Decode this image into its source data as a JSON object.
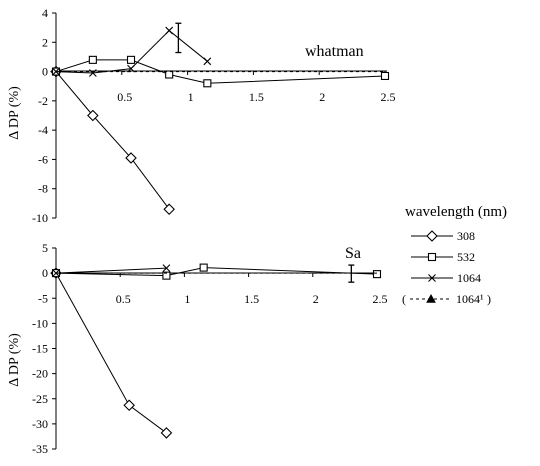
{
  "chart_data": [
    {
      "type": "line",
      "panel_label": "whatman",
      "ylabel": "Δ DP (%)",
      "xlabel": "",
      "xlim": [
        0,
        2.5
      ],
      "ylim": [
        -10,
        4
      ],
      "x_ticks": [
        0.5,
        1,
        1.5,
        2,
        2.5
      ],
      "x_tick_labels": [
        "0.5",
        "1",
        "1.5",
        "2",
        "2.5"
      ],
      "y_ticks": [
        4,
        2,
        0,
        -2,
        -4,
        -6,
        -8,
        -10
      ],
      "y_tick_labels": [
        "4",
        "2",
        "0",
        "-2",
        "-4",
        "-6",
        "-8",
        "-10"
      ],
      "series": [
        {
          "name": "308",
          "marker": "diamond",
          "x": [
            0,
            0.28,
            0.57,
            0.86
          ],
          "y": [
            0,
            -3.0,
            -5.9,
            -9.4
          ]
        },
        {
          "name": "532",
          "marker": "square",
          "x": [
            0,
            0.28,
            0.57,
            0.86,
            1.15,
            2.5
          ],
          "y": [
            0,
            0.8,
            0.8,
            -0.2,
            -0.8,
            -0.3
          ]
        },
        {
          "name": "1064",
          "marker": "x",
          "x": [
            0,
            0.28,
            0.57,
            0.86,
            1.15
          ],
          "y": [
            0,
            -0.1,
            0.2,
            2.8,
            0.7
          ]
        },
        {
          "name": "1064¹",
          "marker": "triangle",
          "x": [
            0,
            2.5
          ],
          "y": [
            0,
            0
          ],
          "error_bar": {
            "x": 0.93,
            "y": 2.4,
            "low": 1.3,
            "high": 3.3
          }
        }
      ]
    },
    {
      "type": "line",
      "panel_label": "Sa",
      "ylabel": "Δ DP (%)",
      "xlabel": "",
      "xlim": [
        0,
        2.5
      ],
      "ylim": [
        -35,
        5
      ],
      "x_ticks": [
        0.5,
        1,
        1.5,
        2,
        2.5
      ],
      "x_tick_labels": [
        "0.5",
        "1",
        "1.5",
        "2",
        "2.5"
      ],
      "y_ticks": [
        5,
        0,
        -5,
        -10,
        -15,
        -20,
        -25,
        -30,
        -35
      ],
      "y_tick_labels": [
        "5",
        "0",
        "-5",
        "-10",
        "-15",
        "-20",
        "-25",
        "-30",
        "-35"
      ],
      "series": [
        {
          "name": "308",
          "marker": "diamond",
          "x": [
            0,
            0.57,
            0.86
          ],
          "y": [
            0,
            -26.3,
            -31.8
          ]
        },
        {
          "name": "532",
          "marker": "square",
          "x": [
            0,
            0.86,
            1.15,
            2.5
          ],
          "y": [
            0,
            -0.5,
            1.1,
            -0.2
          ]
        },
        {
          "name": "1064",
          "marker": "x",
          "x": [
            0,
            0.86
          ],
          "y": [
            0,
            1.0
          ]
        },
        {
          "name": "1064¹",
          "marker": "triangle",
          "x": [
            0,
            2.3,
            2.5
          ],
          "y": [
            0,
            0,
            0
          ],
          "error_bar": {
            "x": 2.3,
            "y": 0,
            "low": -1.8,
            "high": 1.6
          }
        }
      ]
    }
  ],
  "legend": {
    "title": "wavelength (nm)",
    "items": [
      "308",
      "532",
      "1064",
      "1064¹"
    ],
    "paren_open": "(",
    "paren_close": ")"
  }
}
